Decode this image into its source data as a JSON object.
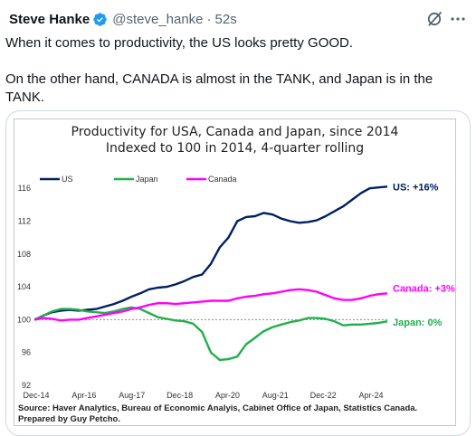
{
  "tweet": {
    "author_name": "Steve Hanke",
    "handle": "@steve_hanke",
    "separator": "·",
    "timestamp": "52s",
    "text": "When it comes to productivity, the US looks pretty GOOD.\n\nOn the other hand, CANADA is almost in the TANK, and Japan is in the TANK."
  },
  "icons": {
    "verified": "verified-badge-icon",
    "grok": "grok-icon",
    "more": "more-options-icon"
  },
  "colors": {
    "us": "#002060",
    "japan": "#20b04a",
    "canada": "#ff00ff",
    "verified": "#1d9bf0"
  },
  "chart_data": {
    "type": "line",
    "title": "Productivity for USA, Canada and Japan, since 2014",
    "subtitle": "Indexed to 100 in 2014, 4-quarter rolling",
    "x_tick_labels": [
      "Dec-14",
      "Apr-16",
      "Aug-17",
      "Dec-18",
      "Apr-20",
      "Aug-21",
      "Dec-22",
      "Apr-24"
    ],
    "x": [
      2014.92,
      2015.17,
      2015.42,
      2015.67,
      2015.92,
      2016.17,
      2016.42,
      2016.67,
      2016.92,
      2017.17,
      2017.42,
      2017.67,
      2017.92,
      2018.17,
      2018.42,
      2018.67,
      2018.92,
      2019.17,
      2019.42,
      2019.67,
      2019.92,
      2020.17,
      2020.42,
      2020.67,
      2020.92,
      2021.17,
      2021.42,
      2021.67,
      2021.92,
      2022.17,
      2022.42,
      2022.67,
      2022.92,
      2023.17,
      2023.42,
      2023.67,
      2023.92,
      2024.17,
      2024.42,
      2024.67,
      2024.92
    ],
    "series": [
      {
        "name": "US",
        "color": "#002060",
        "values": [
          100.0,
          100.5,
          100.9,
          101.1,
          101.2,
          101.1,
          101.2,
          101.3,
          101.6,
          101.9,
          102.3,
          102.8,
          103.2,
          103.7,
          103.9,
          104.0,
          104.3,
          104.7,
          105.2,
          105.5,
          106.8,
          108.8,
          110.0,
          112.0,
          112.5,
          112.6,
          113.0,
          112.8,
          112.3,
          112.0,
          111.8,
          111.9,
          112.1,
          112.6,
          113.2,
          113.8,
          114.6,
          115.4,
          116.0,
          116.1,
          116.2
        ]
      },
      {
        "name": "Japan",
        "color": "#20b04a",
        "values": [
          100.0,
          100.5,
          101.0,
          101.3,
          101.3,
          101.2,
          101.0,
          100.9,
          100.8,
          101.0,
          101.3,
          101.5,
          101.3,
          100.8,
          100.3,
          100.1,
          99.9,
          99.8,
          99.5,
          98.5,
          96.0,
          95.1,
          95.2,
          95.5,
          97.0,
          97.8,
          98.6,
          99.1,
          99.4,
          99.7,
          99.9,
          100.2,
          100.2,
          100.1,
          99.8,
          99.3,
          99.4,
          99.4,
          99.5,
          99.6,
          99.8
        ]
      },
      {
        "name": "Canada",
        "color": "#ff00ff",
        "values": [
          100.0,
          100.2,
          100.1,
          99.9,
          100.0,
          100.0,
          100.2,
          100.4,
          100.6,
          100.8,
          101.0,
          101.3,
          101.5,
          101.8,
          102.0,
          102.0,
          101.9,
          102.0,
          102.1,
          102.2,
          102.3,
          102.3,
          102.3,
          102.6,
          102.8,
          102.9,
          103.1,
          103.2,
          103.4,
          103.6,
          103.7,
          103.6,
          103.4,
          103.0,
          102.6,
          102.4,
          102.4,
          102.6,
          102.9,
          103.1,
          103.2
        ]
      }
    ],
    "end_labels": {
      "us": "US: +16%",
      "canada": "Canada: +3%",
      "japan": "Japan: 0%"
    },
    "y_ticks": [
      92,
      96,
      100,
      104,
      108,
      112,
      116
    ],
    "ylim": [
      92,
      118
    ],
    "reference_line": 100,
    "legend_placement": "top-left",
    "grid": false,
    "source": "Source: Haver Analytics, Bureau of Economic Analyis, Cabinet Office of Japan, Statistics Canada.\nPrepared by Guy Petcho."
  }
}
